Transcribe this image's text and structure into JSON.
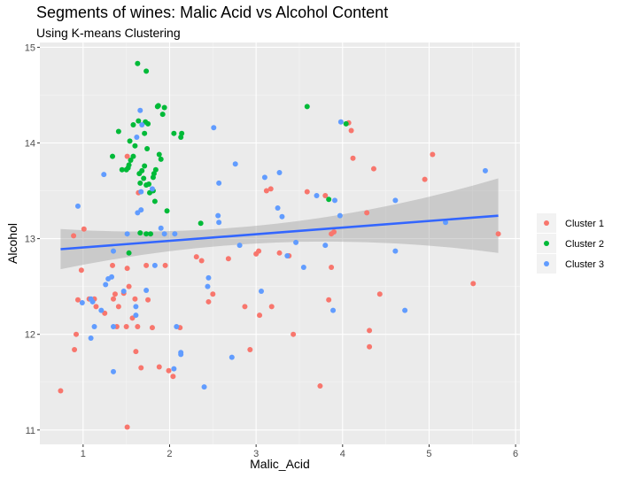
{
  "chart_data": {
    "type": "scatter",
    "title": "Segments of wines: Malic Acid vs Alcohol Content",
    "subtitle": "Using K-means Clustering",
    "xlabel": "Malic_Acid",
    "ylabel": "Alcohol",
    "xlim": [
      0.5,
      6.05
    ],
    "ylim": [
      10.85,
      15.05
    ],
    "xticks": [
      1,
      2,
      3,
      4,
      5,
      6
    ],
    "yticks": [
      11,
      12,
      13,
      14,
      15
    ],
    "grid": true,
    "legend_position": "right",
    "series": [
      {
        "name": "Cluster 1",
        "color": "#F8766D",
        "points": [
          [
            0.74,
            11.41
          ],
          [
            0.89,
            13.03
          ],
          [
            0.98,
            12.67
          ],
          [
            1.01,
            13.1
          ],
          [
            0.9,
            11.84
          ],
          [
            0.92,
            12.0
          ],
          [
            0.94,
            12.36
          ],
          [
            1.07,
            12.37
          ],
          [
            1.13,
            12.37
          ],
          [
            1.15,
            12.29
          ],
          [
            1.25,
            12.22
          ],
          [
            1.34,
            12.72
          ],
          [
            1.35,
            12.37
          ],
          [
            1.37,
            12.42
          ],
          [
            1.39,
            12.08
          ],
          [
            1.41,
            12.29
          ],
          [
            1.47,
            12.43
          ],
          [
            1.5,
            12.08
          ],
          [
            1.51,
            11.03
          ],
          [
            1.51,
            13.86
          ],
          [
            1.51,
            12.69
          ],
          [
            1.53,
            12.5
          ],
          [
            1.57,
            12.17
          ],
          [
            1.6,
            12.37
          ],
          [
            1.61,
            11.82
          ],
          [
            1.63,
            12.08
          ],
          [
            1.64,
            13.48
          ],
          [
            1.67,
            11.65
          ],
          [
            1.73,
            12.72
          ],
          [
            1.75,
            12.36
          ],
          [
            1.8,
            12.07
          ],
          [
            1.88,
            11.66
          ],
          [
            1.95,
            12.72
          ],
          [
            1.99,
            11.62
          ],
          [
            2.04,
            11.56
          ],
          [
            2.12,
            12.07
          ],
          [
            2.31,
            12.81
          ],
          [
            2.37,
            12.77
          ],
          [
            2.45,
            12.34
          ],
          [
            2.5,
            12.42
          ],
          [
            2.68,
            12.79
          ],
          [
            2.87,
            12.29
          ],
          [
            2.93,
            11.84
          ],
          [
            3.0,
            12.84
          ],
          [
            3.03,
            12.87
          ],
          [
            3.04,
            12.2
          ],
          [
            3.12,
            13.5
          ],
          [
            3.17,
            13.52
          ],
          [
            3.18,
            12.29
          ],
          [
            3.27,
            12.85
          ],
          [
            3.38,
            12.82
          ],
          [
            3.43,
            12.0
          ],
          [
            3.59,
            13.49
          ],
          [
            3.74,
            11.46
          ],
          [
            3.8,
            13.45
          ],
          [
            3.84,
            12.36
          ],
          [
            3.87,
            13.05
          ],
          [
            3.87,
            12.7
          ],
          [
            3.9,
            13.07
          ],
          [
            4.07,
            14.21
          ],
          [
            4.1,
            14.13
          ],
          [
            4.12,
            13.84
          ],
          [
            4.28,
            13.27
          ],
          [
            4.31,
            12.04
          ],
          [
            4.31,
            11.87
          ],
          [
            4.36,
            13.73
          ],
          [
            4.43,
            12.42
          ],
          [
            4.95,
            13.62
          ],
          [
            5.04,
            13.88
          ],
          [
            5.51,
            12.53
          ],
          [
            5.8,
            13.05
          ]
        ]
      },
      {
        "name": "Cluster 2",
        "color": "#00BA38",
        "points": [
          [
            1.34,
            13.86
          ],
          [
            1.41,
            14.12
          ],
          [
            1.45,
            13.72
          ],
          [
            1.5,
            13.72
          ],
          [
            1.52,
            13.74
          ],
          [
            1.53,
            13.77
          ],
          [
            1.54,
            14.02
          ],
          [
            1.55,
            13.82
          ],
          [
            1.58,
            14.19
          ],
          [
            1.58,
            13.86
          ],
          [
            1.6,
            13.97
          ],
          [
            1.63,
            14.83
          ],
          [
            1.64,
            14.23
          ],
          [
            1.65,
            13.68
          ],
          [
            1.66,
            13.06
          ],
          [
            1.66,
            13.58
          ],
          [
            1.68,
            13.71
          ],
          [
            1.7,
            13.63
          ],
          [
            1.71,
            13.76
          ],
          [
            1.71,
            14.1
          ],
          [
            1.73,
            14.75
          ],
          [
            1.72,
            14.22
          ],
          [
            1.73,
            13.56
          ],
          [
            1.74,
            13.94
          ],
          [
            1.75,
            14.2
          ],
          [
            1.73,
            13.05
          ],
          [
            1.76,
            13.57
          ],
          [
            1.77,
            13.48
          ],
          [
            1.78,
            13.05
          ],
          [
            1.81,
            13.5
          ],
          [
            1.81,
            13.64
          ],
          [
            1.82,
            13.68
          ],
          [
            1.83,
            13.39
          ],
          [
            1.84,
            13.72
          ],
          [
            1.86,
            14.38
          ],
          [
            1.87,
            14.39
          ],
          [
            1.88,
            13.88
          ],
          [
            1.9,
            13.83
          ],
          [
            1.92,
            14.3
          ],
          [
            1.94,
            14.37
          ],
          [
            1.97,
            13.29
          ],
          [
            2.05,
            14.1
          ],
          [
            2.13,
            14.06
          ],
          [
            2.14,
            14.1
          ],
          [
            2.36,
            13.16
          ],
          [
            3.59,
            14.38
          ],
          [
            3.84,
            13.41
          ],
          [
            4.04,
            14.2
          ],
          [
            1.53,
            12.85
          ]
        ]
      },
      {
        "name": "Cluster 3",
        "color": "#619CFF",
        "points": [
          [
            0.94,
            13.34
          ],
          [
            0.99,
            12.33
          ],
          [
            1.09,
            12.37
          ],
          [
            1.09,
            11.96
          ],
          [
            1.11,
            12.34
          ],
          [
            1.13,
            12.08
          ],
          [
            1.21,
            12.25
          ],
          [
            1.24,
            13.67
          ],
          [
            1.26,
            12.52
          ],
          [
            1.29,
            12.58
          ],
          [
            1.33,
            12.6
          ],
          [
            1.35,
            11.61
          ],
          [
            1.35,
            12.87
          ],
          [
            1.35,
            12.08
          ],
          [
            1.47,
            12.45
          ],
          [
            1.51,
            13.05
          ],
          [
            1.61,
            12.2
          ],
          [
            1.61,
            12.29
          ],
          [
            1.62,
            14.06
          ],
          [
            1.63,
            13.27
          ],
          [
            1.66,
            14.34
          ],
          [
            1.67,
            13.3
          ],
          [
            1.67,
            13.49
          ],
          [
            1.68,
            14.19
          ],
          [
            1.73,
            12.46
          ],
          [
            1.8,
            13.52
          ],
          [
            1.83,
            12.72
          ],
          [
            1.9,
            13.11
          ],
          [
            1.94,
            13.05
          ],
          [
            2.05,
            11.64
          ],
          [
            2.06,
            13.05
          ],
          [
            2.08,
            12.08
          ],
          [
            2.13,
            11.81
          ],
          [
            2.13,
            11.79
          ],
          [
            2.4,
            11.45
          ],
          [
            2.44,
            12.5
          ],
          [
            2.45,
            12.59
          ],
          [
            2.51,
            14.16
          ],
          [
            2.56,
            13.24
          ],
          [
            2.57,
            13.58
          ],
          [
            2.57,
            13.17
          ],
          [
            2.72,
            11.76
          ],
          [
            2.76,
            13.78
          ],
          [
            2.81,
            12.93
          ],
          [
            3.06,
            12.45
          ],
          [
            3.1,
            13.64
          ],
          [
            3.25,
            13.32
          ],
          [
            3.27,
            13.69
          ],
          [
            3.3,
            13.23
          ],
          [
            3.36,
            12.82
          ],
          [
            3.46,
            12.96
          ],
          [
            3.55,
            12.7
          ],
          [
            3.7,
            13.45
          ],
          [
            3.8,
            12.93
          ],
          [
            3.89,
            12.25
          ],
          [
            3.91,
            13.4
          ],
          [
            3.97,
            13.24
          ],
          [
            3.98,
            14.22
          ],
          [
            4.61,
            13.4
          ],
          [
            4.61,
            12.87
          ],
          [
            4.72,
            12.25
          ],
          [
            5.19,
            13.17
          ],
          [
            5.65,
            13.71
          ]
        ]
      }
    ],
    "trend_line": {
      "method": "lm",
      "color": "#3366FF",
      "x_start": 0.74,
      "x_end": 5.8,
      "y_start": 12.89,
      "y_end": 13.24,
      "band_color": "#999999",
      "band_lower_start": 12.68,
      "band_upper_start": 13.1,
      "band_lower_mid": 12.96,
      "band_upper_mid": 13.16,
      "band_lower_end": 12.85,
      "band_upper_end": 13.63
    }
  }
}
